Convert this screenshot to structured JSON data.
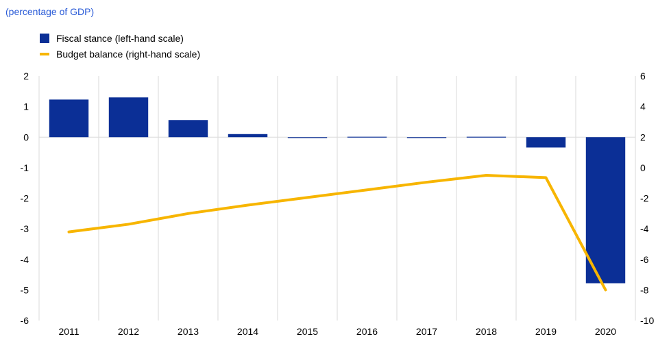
{
  "subtitle": "(percentage of GDP)",
  "legend": [
    {
      "label": "Fiscal stance (left-hand scale)",
      "color": "#0b2f96",
      "kind": "bar"
    },
    {
      "label": "Budget balance (right-hand scale)",
      "color": "#f7b500",
      "kind": "line"
    }
  ],
  "chart_data": {
    "type": "bar",
    "categories": [
      "2011",
      "2012",
      "2013",
      "2014",
      "2015",
      "2016",
      "2017",
      "2018",
      "2019",
      "2020"
    ],
    "series": [
      {
        "name": "Fiscal stance (left-hand scale)",
        "type": "bar",
        "axis": "left",
        "values": [
          1.23,
          1.3,
          0.56,
          0.1,
          -0.03,
          0.0,
          -0.03,
          0.0,
          -0.34,
          -4.78
        ]
      },
      {
        "name": "Budget balance (right-hand scale)",
        "type": "line",
        "axis": "right",
        "values": [
          -4.2,
          -3.7,
          -3.0,
          -2.45,
          -1.95,
          -1.45,
          -0.95,
          -0.5,
          -0.65,
          -8.0
        ]
      }
    ],
    "left_axis": {
      "ylim": [
        -6,
        2
      ],
      "ticks": [
        "2",
        "1",
        "0",
        "-1",
        "-2",
        "-3",
        "-4",
        "-5",
        "-6"
      ]
    },
    "right_axis": {
      "ylim": [
        -10,
        6
      ],
      "ticks": [
        "6",
        "4",
        "2",
        "0",
        "-2",
        "-4",
        "-6",
        "-8",
        "-10"
      ]
    },
    "grid": "vertical",
    "legend_position": "top-left"
  }
}
